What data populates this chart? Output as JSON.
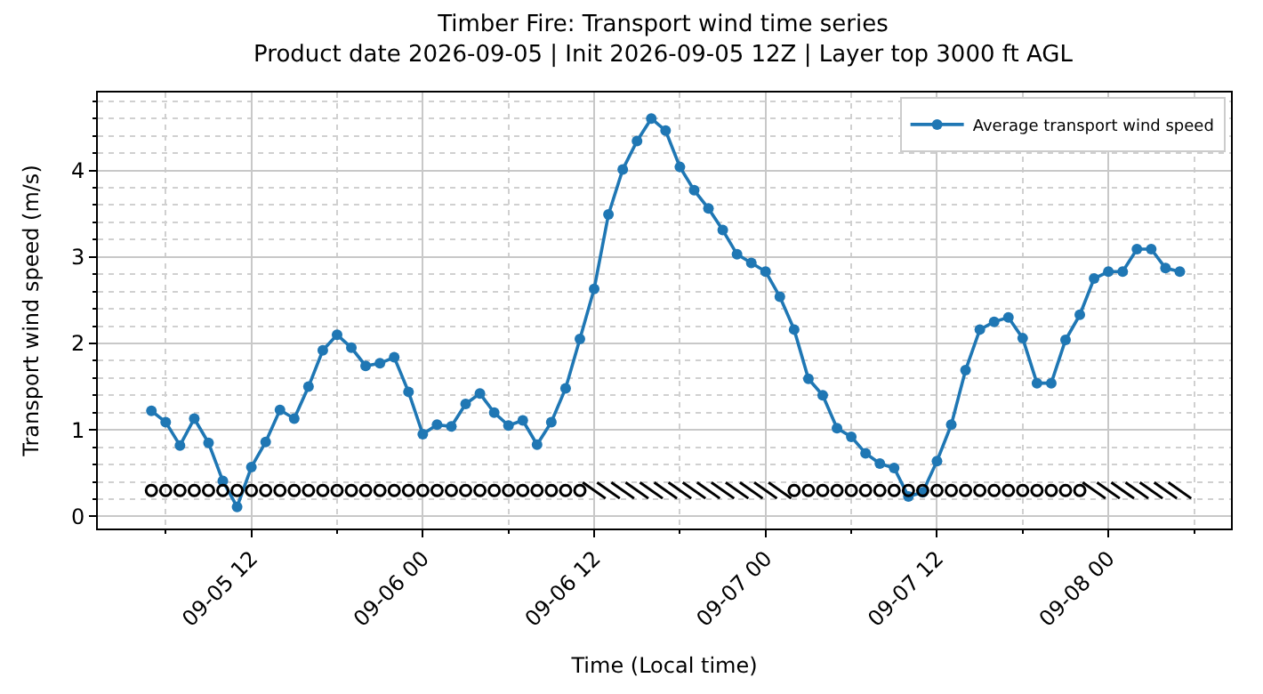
{
  "chart_data": {
    "type": "line",
    "title": "Timber Fire: Transport wind time series",
    "subtitle": "Product date 2026-09-05 | Init 2026-09-05 12Z | Layer top 3000 ft AGL",
    "xlabel": "Time (Local time)",
    "ylabel": "Transport wind speed (m/s)",
    "x": [
      "2026-09-05T05:00",
      "2026-09-05T06:00",
      "2026-09-05T07:00",
      "2026-09-05T08:00",
      "2026-09-05T09:00",
      "2026-09-05T10:00",
      "2026-09-05T11:00",
      "2026-09-05T12:00",
      "2026-09-05T13:00",
      "2026-09-05T14:00",
      "2026-09-05T15:00",
      "2026-09-05T16:00",
      "2026-09-05T17:00",
      "2026-09-05T18:00",
      "2026-09-05T19:00",
      "2026-09-05T20:00",
      "2026-09-05T21:00",
      "2026-09-05T22:00",
      "2026-09-05T23:00",
      "2026-09-06T00:00",
      "2026-09-06T01:00",
      "2026-09-06T02:00",
      "2026-09-06T03:00",
      "2026-09-06T04:00",
      "2026-09-06T05:00",
      "2026-09-06T06:00",
      "2026-09-06T07:00",
      "2026-09-06T08:00",
      "2026-09-06T09:00",
      "2026-09-06T10:00",
      "2026-09-06T11:00",
      "2026-09-06T12:00",
      "2026-09-06T13:00",
      "2026-09-06T14:00",
      "2026-09-06T15:00",
      "2026-09-06T16:00",
      "2026-09-06T17:00",
      "2026-09-06T18:00",
      "2026-09-06T19:00",
      "2026-09-06T20:00",
      "2026-09-06T21:00",
      "2026-09-06T22:00",
      "2026-09-06T23:00",
      "2026-09-07T00:00",
      "2026-09-07T01:00",
      "2026-09-07T02:00",
      "2026-09-07T03:00",
      "2026-09-07T04:00",
      "2026-09-07T05:00",
      "2026-09-07T06:00",
      "2026-09-07T07:00",
      "2026-09-07T08:00",
      "2026-09-07T09:00",
      "2026-09-07T10:00",
      "2026-09-07T11:00",
      "2026-09-07T12:00",
      "2026-09-07T13:00",
      "2026-09-07T14:00",
      "2026-09-07T15:00",
      "2026-09-07T16:00",
      "2026-09-07T17:00",
      "2026-09-07T18:00",
      "2026-09-07T19:00",
      "2026-09-07T20:00",
      "2026-09-07T21:00",
      "2026-09-07T22:00",
      "2026-09-07T23:00",
      "2026-09-08T00:00",
      "2026-09-08T01:00",
      "2026-09-08T02:00",
      "2026-09-08T03:00",
      "2026-09-08T04:00",
      "2026-09-08T05:00"
    ],
    "series": [
      {
        "name": "Average transport wind speed",
        "color": "#1f77b4",
        "marker": "circle",
        "values": [
          1.22,
          1.09,
          0.82,
          1.13,
          0.85,
          0.41,
          0.11,
          0.57,
          0.86,
          1.23,
          1.13,
          1.5,
          1.92,
          2.1,
          1.95,
          1.74,
          1.77,
          1.84,
          1.44,
          0.95,
          1.06,
          1.04,
          1.3,
          1.42,
          1.2,
          1.05,
          1.11,
          0.83,
          1.09,
          1.48,
          2.05,
          2.63,
          3.49,
          4.01,
          4.34,
          4.6,
          4.46,
          4.04,
          3.77,
          3.56,
          3.31,
          3.03,
          2.93,
          2.83,
          2.54,
          2.16,
          1.59,
          1.4,
          1.02,
          0.92,
          0.73,
          0.61,
          0.56,
          0.23,
          0.28,
          0.64,
          1.06,
          1.69,
          2.16,
          2.25,
          2.3,
          2.06,
          1.54,
          1.54,
          2.04,
          2.33,
          2.75,
          2.83,
          2.83,
          3.09,
          3.09,
          2.87,
          2.83
        ]
      },
      {
        "type": "scatter",
        "color": "#000000",
        "marker": "circle",
        "values": [
          0.3,
          0.3,
          0.3,
          0.3,
          0.3,
          0.3,
          0.3,
          0.3,
          0.3,
          0.3,
          0.3,
          0.3,
          0.3,
          0.3,
          0.3,
          0.3,
          0.3,
          0.3,
          0.3,
          0.3,
          0.3,
          0.3,
          0.3,
          0.3,
          0.3,
          0.3,
          0.3,
          0.3,
          0.3,
          0.3,
          0.3,
          null,
          null,
          null,
          null,
          null,
          null,
          null,
          null,
          null,
          null,
          null,
          null,
          null,
          null,
          0.3,
          0.3,
          0.3,
          0.3,
          0.3,
          0.3,
          0.3,
          0.3,
          0.3,
          0.3,
          0.3,
          0.3,
          0.3,
          0.3,
          0.3,
          0.3,
          0.3,
          0.3,
          0.3,
          0.3,
          0.3,
          null,
          null,
          null,
          null,
          null,
          null,
          null
        ]
      },
      {
        "type": "scatter",
        "color": "#000000",
        "marker": "cross",
        "values": [
          null,
          null,
          null,
          null,
          null,
          null,
          null,
          null,
          null,
          null,
          null,
          null,
          null,
          null,
          null,
          null,
          null,
          null,
          null,
          null,
          null,
          null,
          null,
          null,
          null,
          null,
          null,
          null,
          null,
          null,
          null,
          0.3,
          0.3,
          0.3,
          0.3,
          0.3,
          0.3,
          0.3,
          0.3,
          0.3,
          0.3,
          0.3,
          0.3,
          0.3,
          0.3,
          null,
          null,
          null,
          null,
          null,
          null,
          null,
          null,
          null,
          null,
          null,
          null,
          null,
          null,
          null,
          null,
          null,
          null,
          null,
          null,
          null,
          0.3,
          0.3,
          0.3,
          0.3,
          0.3,
          0.3,
          0.3
        ]
      }
    ],
    "xlim": [
      "2026-09-05T01:15",
      "2026-09-08T08:35"
    ],
    "xticks": [
      {
        "value": "2026-09-05T06:00",
        "label": null
      },
      {
        "value": "2026-09-05T12:00",
        "label": "09-05 12"
      },
      {
        "value": "2026-09-05T18:00",
        "label": null
      },
      {
        "value": "2026-09-06T00:00",
        "label": "09-06 00"
      },
      {
        "value": "2026-09-06T06:00",
        "label": null
      },
      {
        "value": "2026-09-06T12:00",
        "label": "09-06 12"
      },
      {
        "value": "2026-09-06T18:00",
        "label": null
      },
      {
        "value": "2026-09-07T00:00",
        "label": "09-07 00"
      },
      {
        "value": "2026-09-07T06:00",
        "label": null
      },
      {
        "value": "2026-09-07T12:00",
        "label": "09-07 12"
      },
      {
        "value": "2026-09-07T18:00",
        "label": null
      },
      {
        "value": "2026-09-08T00:00",
        "label": "09-08 00"
      },
      {
        "value": "2026-09-08T06:00",
        "label": null
      }
    ],
    "ylim": [
      -0.14,
      4.9
    ],
    "yticks": [
      0,
      {
        "value": 0.2,
        "label": null
      },
      {
        "value": 0.4,
        "label": null
      },
      {
        "value": 0.6,
        "label": null
      },
      {
        "value": 0.8,
        "label": null
      },
      1,
      {
        "value": 1.2,
        "label": null
      },
      {
        "value": 1.4,
        "label": null
      },
      {
        "value": 1.6,
        "label": null
      },
      {
        "value": 1.8,
        "label": null
      },
      2,
      {
        "value": 2.2,
        "label": null
      },
      {
        "value": 2.4,
        "label": null
      },
      {
        "value": 2.6,
        "label": null
      },
      {
        "value": 2.8,
        "label": null
      },
      3,
      {
        "value": 3.2,
        "label": null
      },
      {
        "value": 3.4,
        "label": null
      },
      {
        "value": 3.6,
        "label": null
      },
      {
        "value": 3.8,
        "label": null
      },
      4,
      {
        "value": 4.2,
        "label": null
      },
      {
        "value": 4.4,
        "label": null
      },
      {
        "value": 4.6,
        "label": null
      },
      {
        "value": 4.8,
        "label": null
      }
    ],
    "grid": true,
    "legend": "top right",
    "line_style": "solid"
  }
}
